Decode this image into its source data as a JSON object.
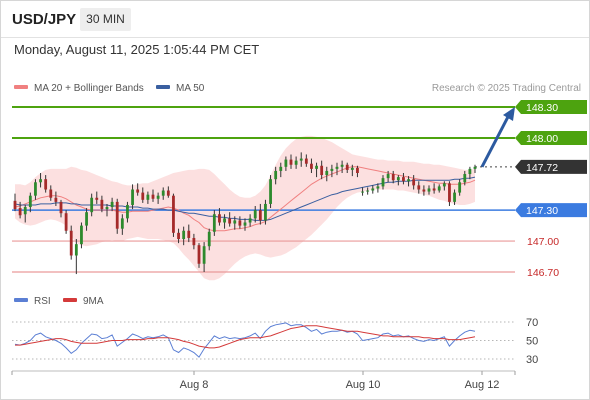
{
  "header": {
    "pair": "USD/JPY",
    "timeframe": "30 MIN"
  },
  "timestamp": "Monday, August 11, 2025 1:05:44 PM CET",
  "legend": {
    "ma20": "MA 20 + Bollinger Bands",
    "ma50": "MA 50",
    "copyright": "Research © 2025 Trading Central"
  },
  "rsi_legend": {
    "rsi": "RSI",
    "ma": "9MA"
  },
  "colors": {
    "up": "#2d8a2d",
    "down": "#a52a2a",
    "ma20": "#f08080",
    "ma50": "#3a5fa0",
    "band": "#fbd6d6",
    "green_level": "#4da30f",
    "blue_level": "#3b7be0",
    "red_level": "#e99a9a",
    "red_label": "#c62828",
    "arrow": "#2c5aa0",
    "rsi": "#5b7fd4",
    "rsi_ma": "#d43a3a"
  },
  "chart_data": [
    {
      "type": "candlestick",
      "title": "USD/JPY",
      "timeframe": "30 MIN",
      "x_tick_labels": [
        "Aug 8",
        "Aug 10",
        "Aug 12"
      ],
      "levels": [
        {
          "value": 148.3,
          "label": "148.30",
          "kind": "resistance"
        },
        {
          "value": 148.0,
          "label": "148.00",
          "kind": "resistance"
        },
        {
          "value": 147.72,
          "label": "147.72",
          "kind": "last_price"
        },
        {
          "value": 147.3,
          "label": "147.30",
          "kind": "pivot"
        },
        {
          "value": 147.0,
          "label": "147.00",
          "kind": "support"
        },
        {
          "value": 146.7,
          "label": "146.70",
          "kind": "support"
        }
      ],
      "projection": {
        "from": 147.72,
        "to": 148.3,
        "direction": "up"
      },
      "candles": [
        [
          147.39,
          147.46,
          147.29,
          147.31
        ],
        [
          147.32,
          147.38,
          147.22,
          147.25
        ],
        [
          147.26,
          147.35,
          147.18,
          147.33
        ],
        [
          147.33,
          147.47,
          147.28,
          147.44
        ],
        [
          147.44,
          147.6,
          147.4,
          147.57
        ],
        [
          147.57,
          147.66,
          147.52,
          147.6
        ],
        [
          147.6,
          147.64,
          147.47,
          147.5
        ],
        [
          147.5,
          147.54,
          147.39,
          147.42
        ],
        [
          147.42,
          147.48,
          147.34,
          147.38
        ],
        [
          147.38,
          147.4,
          147.23,
          147.27
        ],
        [
          147.27,
          147.3,
          147.07,
          147.1
        ],
        [
          147.1,
          147.15,
          146.82,
          146.86
        ],
        [
          146.86,
          147.02,
          146.68,
          146.97
        ],
        [
          146.97,
          147.18,
          146.93,
          147.15
        ],
        [
          147.15,
          147.32,
          147.1,
          147.28
        ],
        [
          147.28,
          147.46,
          147.24,
          147.42
        ],
        [
          147.42,
          147.48,
          147.36,
          147.4
        ],
        [
          147.4,
          147.44,
          147.28,
          147.31
        ],
        [
          147.31,
          147.36,
          147.24,
          147.33
        ],
        [
          147.33,
          147.42,
          147.29,
          147.38
        ],
        [
          147.38,
          147.41,
          147.07,
          147.12
        ],
        [
          147.12,
          147.26,
          147.06,
          147.22
        ],
        [
          147.22,
          147.38,
          147.18,
          147.35
        ],
        [
          147.35,
          147.55,
          147.31,
          147.5
        ],
        [
          147.5,
          147.56,
          147.44,
          147.47
        ],
        [
          147.47,
          147.52,
          147.37,
          147.4
        ],
        [
          147.4,
          147.48,
          147.36,
          147.45
        ],
        [
          147.45,
          147.5,
          147.38,
          147.41
        ],
        [
          147.41,
          147.47,
          147.36,
          147.44
        ],
        [
          147.44,
          147.52,
          147.4,
          147.49
        ],
        [
          147.49,
          147.53,
          147.42,
          147.44
        ],
        [
          147.44,
          147.46,
          147.04,
          147.08
        ],
        [
          147.08,
          147.12,
          146.98,
          147.02
        ],
        [
          147.02,
          147.14,
          146.96,
          147.1
        ],
        [
          147.1,
          147.16,
          146.99,
          147.03
        ],
        [
          147.03,
          147.07,
          146.92,
          146.96
        ],
        [
          146.96,
          146.98,
          146.74,
          146.78
        ],
        [
          146.78,
          146.99,
          146.7,
          146.95
        ],
        [
          146.95,
          147.12,
          146.91,
          147.09
        ],
        [
          147.09,
          147.3,
          147.05,
          147.26
        ],
        [
          147.26,
          147.32,
          147.15,
          147.18
        ],
        [
          147.18,
          147.26,
          147.12,
          147.22
        ],
        [
          147.22,
          147.28,
          147.14,
          147.17
        ],
        [
          147.17,
          147.24,
          147.11,
          147.2
        ],
        [
          147.2,
          147.24,
          147.12,
          147.15
        ],
        [
          147.15,
          147.22,
          147.1,
          147.18
        ],
        [
          147.18,
          147.26,
          147.14,
          147.22
        ],
        [
          147.22,
          147.34,
          147.18,
          147.3
        ],
        [
          147.3,
          147.36,
          147.16,
          147.2
        ],
        [
          147.2,
          147.4,
          147.16,
          147.36
        ],
        [
          147.36,
          147.64,
          147.32,
          147.6
        ],
        [
          147.6,
          147.72,
          147.55,
          147.68
        ],
        [
          147.68,
          147.76,
          147.62,
          147.72
        ],
        [
          147.72,
          147.82,
          147.68,
          147.79
        ],
        [
          147.79,
          147.84,
          147.7,
          147.74
        ],
        [
          147.74,
          147.82,
          147.7,
          147.78
        ],
        [
          147.78,
          147.86,
          147.72,
          147.8
        ],
        [
          147.8,
          147.84,
          147.72,
          147.75
        ],
        [
          147.75,
          147.8,
          147.66,
          147.7
        ],
        [
          147.7,
          147.76,
          147.62,
          147.73
        ],
        [
          147.73,
          147.78,
          147.6,
          147.64
        ],
        [
          147.64,
          147.72,
          147.58,
          147.68
        ],
        [
          147.68,
          147.74,
          147.62,
          147.7
        ],
        [
          147.7,
          147.76,
          147.64,
          147.72
        ],
        [
          147.72,
          147.78,
          147.66,
          147.74
        ],
        [
          147.74,
          147.76,
          147.66,
          147.69
        ],
        [
          147.69,
          147.74,
          147.63,
          147.71
        ],
        [
          147.71,
          147.73,
          147.62,
          147.66
        ],
        [
          147.48,
          147.52,
          147.44,
          147.48
        ],
        [
          147.48,
          147.52,
          147.45,
          147.49
        ],
        [
          147.49,
          147.54,
          147.46,
          147.51
        ],
        [
          147.51,
          147.56,
          147.47,
          147.53
        ],
        [
          147.53,
          147.64,
          147.5,
          147.61
        ],
        [
          147.61,
          147.68,
          147.57,
          147.65
        ],
        [
          147.65,
          147.68,
          147.56,
          147.59
        ],
        [
          147.59,
          147.64,
          147.54,
          147.62
        ],
        [
          147.62,
          147.66,
          147.55,
          147.58
        ],
        [
          147.58,
          147.63,
          147.53,
          147.6
        ],
        [
          147.6,
          147.64,
          147.5,
          147.54
        ],
        [
          147.54,
          147.58,
          147.46,
          147.5
        ],
        [
          147.5,
          147.54,
          147.44,
          147.48
        ],
        [
          147.48,
          147.54,
          147.45,
          147.51
        ],
        [
          147.51,
          147.56,
          147.46,
          147.49
        ],
        [
          147.49,
          147.55,
          147.47,
          147.53
        ],
        [
          147.53,
          147.58,
          147.49,
          147.56
        ],
        [
          147.56,
          147.58,
          147.34,
          147.38
        ],
        [
          147.38,
          147.5,
          147.35,
          147.47
        ],
        [
          147.47,
          147.6,
          147.44,
          147.57
        ],
        [
          147.57,
          147.68,
          147.54,
          147.65
        ],
        [
          147.65,
          147.72,
          147.6,
          147.7
        ],
        [
          147.7,
          147.74,
          147.66,
          147.72
        ]
      ],
      "ma20": [
        147.33,
        147.34,
        147.36,
        147.38,
        147.4,
        147.42,
        147.43,
        147.44,
        147.44,
        147.43,
        147.41,
        147.38,
        147.35,
        147.33,
        147.31,
        147.3,
        147.3,
        147.3,
        147.3,
        147.3,
        147.29,
        147.28,
        147.28,
        147.29,
        147.29,
        147.29,
        147.29,
        147.3,
        147.31,
        147.32,
        147.33,
        147.32,
        147.3,
        147.27,
        147.25,
        147.21,
        147.18,
        147.13,
        147.11,
        147.1,
        147.1,
        147.1,
        147.11,
        147.12,
        147.12,
        147.13,
        147.14,
        147.16,
        147.17,
        147.19,
        147.23,
        147.27,
        147.31,
        147.35,
        147.39,
        147.43,
        147.47,
        147.51,
        147.55,
        147.58,
        147.61,
        147.63,
        147.65,
        147.67,
        147.69,
        147.71,
        147.72,
        147.72,
        147.71,
        147.7,
        147.69,
        147.68,
        147.67,
        147.66,
        147.65,
        147.64,
        147.63,
        147.62,
        147.61,
        147.6,
        147.59,
        147.58,
        147.57,
        147.56,
        147.56,
        147.55,
        147.55,
        147.55,
        147.56,
        147.57,
        147.59
      ],
      "ma50": [
        147.36,
        147.35,
        147.35,
        147.35,
        147.35,
        147.36,
        147.36,
        147.36,
        147.37,
        147.37,
        147.37,
        147.36,
        147.36,
        147.35,
        147.35,
        147.35,
        147.35,
        147.35,
        147.35,
        147.34,
        147.34,
        147.34,
        147.33,
        147.33,
        147.33,
        147.32,
        147.32,
        147.31,
        147.31,
        147.31,
        147.3,
        147.3,
        147.29,
        147.28,
        147.27,
        147.27,
        147.26,
        147.25,
        147.24,
        147.24,
        147.23,
        147.23,
        147.22,
        147.22,
        147.21,
        147.21,
        147.21,
        147.2,
        147.2,
        147.2,
        147.21,
        147.23,
        147.25,
        147.27,
        147.29,
        147.31,
        147.33,
        147.35,
        147.37,
        147.39,
        147.41,
        147.43,
        147.45,
        147.46,
        147.48,
        147.49,
        147.5,
        147.51,
        147.52,
        147.53,
        147.54,
        147.55,
        147.56,
        147.57,
        147.57,
        147.58,
        147.58,
        147.58,
        147.59,
        147.59,
        147.59,
        147.59,
        147.59,
        147.59,
        147.59,
        147.59,
        147.6,
        147.6,
        147.61,
        147.61,
        147.62
      ],
      "bollinger_upper": [
        147.55,
        147.55,
        147.54,
        147.57,
        147.62,
        147.66,
        147.69,
        147.7,
        147.7,
        147.7,
        147.7,
        147.72,
        147.71,
        147.69,
        147.68,
        147.66,
        147.64,
        147.62,
        147.6,
        147.58,
        147.57,
        147.55,
        147.54,
        147.54,
        147.55,
        147.56,
        147.56,
        147.58,
        147.6,
        147.62,
        147.64,
        147.66,
        147.67,
        147.68,
        147.69,
        147.69,
        147.7,
        147.7,
        147.69,
        147.65,
        147.6,
        147.55,
        147.5,
        147.46,
        147.43,
        147.42,
        147.42,
        147.44,
        147.48,
        147.54,
        147.64,
        147.74,
        147.83,
        147.9,
        147.95,
        147.99,
        148.01,
        148.02,
        148.02,
        148.01,
        148.0,
        147.98,
        147.96,
        147.93,
        147.9,
        147.87,
        147.84,
        147.83,
        147.82,
        147.81,
        147.8,
        147.79,
        147.79,
        147.78,
        147.78,
        147.78,
        147.77,
        147.77,
        147.77,
        147.76,
        147.75,
        147.75,
        147.74,
        147.74,
        147.73,
        147.72,
        147.71,
        147.7,
        147.69,
        147.69,
        147.7
      ],
      "bollinger_lower": [
        147.22,
        147.18,
        147.16,
        147.15,
        147.16,
        147.18,
        147.2,
        147.21,
        147.2,
        147.18,
        147.15,
        147.05,
        146.98,
        146.96,
        146.95,
        146.96,
        146.97,
        146.99,
        147.0,
        147.01,
        147.0,
        147.0,
        147.02,
        147.03,
        147.04,
        147.03,
        147.02,
        147.02,
        147.02,
        147.01,
        147.0,
        146.98,
        146.93,
        146.87,
        146.82,
        146.76,
        146.7,
        146.64,
        146.62,
        146.62,
        146.64,
        146.68,
        146.73,
        146.78,
        146.82,
        146.85,
        146.87,
        146.88,
        146.87,
        146.85,
        146.84,
        146.85,
        146.86,
        146.88,
        146.91,
        146.94,
        146.98,
        147.02,
        147.06,
        147.11,
        147.16,
        147.21,
        147.27,
        147.33,
        147.38,
        147.42,
        147.45,
        147.47,
        147.48,
        147.49,
        147.5,
        147.5,
        147.5,
        147.5,
        147.5,
        147.49,
        147.49,
        147.48,
        147.47,
        147.46,
        147.45,
        147.44,
        147.42,
        147.4,
        147.39,
        147.37,
        147.36,
        147.35,
        147.35,
        147.36,
        147.38
      ]
    },
    {
      "type": "line",
      "title": "RSI",
      "y_tick_labels": [
        "70",
        "50",
        "30"
      ],
      "ylim": [
        20,
        80
      ],
      "series": [
        {
          "name": "RSI",
          "values": [
            46,
            45,
            47,
            50,
            56,
            58,
            54,
            52,
            50,
            47,
            42,
            36,
            40,
            47,
            52,
            57,
            56,
            52,
            53,
            56,
            44,
            48,
            52,
            57,
            55,
            52,
            54,
            53,
            54,
            56,
            53,
            40,
            37,
            42,
            40,
            37,
            32,
            41,
            48,
            55,
            52,
            54,
            52,
            53,
            52,
            53,
            55,
            58,
            52,
            60,
            65,
            67,
            68,
            69,
            66,
            67,
            67,
            64,
            60,
            62,
            57,
            59,
            60,
            60,
            61,
            59,
            60,
            57,
            50,
            51,
            52,
            53,
            57,
            58,
            55,
            56,
            54,
            55,
            52,
            50,
            49,
            51,
            50,
            52,
            54,
            44,
            50,
            55,
            59,
            61,
            60
          ]
        },
        {
          "name": "9MA",
          "values": [
            45,
            45,
            46,
            47,
            48,
            49,
            50,
            51,
            52,
            52,
            51,
            49,
            48,
            47,
            47,
            47,
            47,
            48,
            49,
            50,
            50,
            50,
            51,
            51,
            51,
            51,
            52,
            52,
            53,
            53,
            53,
            52,
            51,
            49,
            48,
            46,
            44,
            43,
            42,
            42,
            43,
            45,
            47,
            49,
            51,
            52,
            53,
            53,
            53,
            54,
            55,
            57,
            59,
            61,
            63,
            64,
            65,
            66,
            66,
            66,
            65,
            64,
            63,
            62,
            61,
            60,
            60,
            60,
            59,
            58,
            57,
            56,
            55,
            55,
            54,
            54,
            54,
            54,
            54,
            54,
            53,
            53,
            52,
            52,
            52,
            51,
            51,
            51,
            52,
            53,
            54
          ]
        }
      ]
    }
  ]
}
